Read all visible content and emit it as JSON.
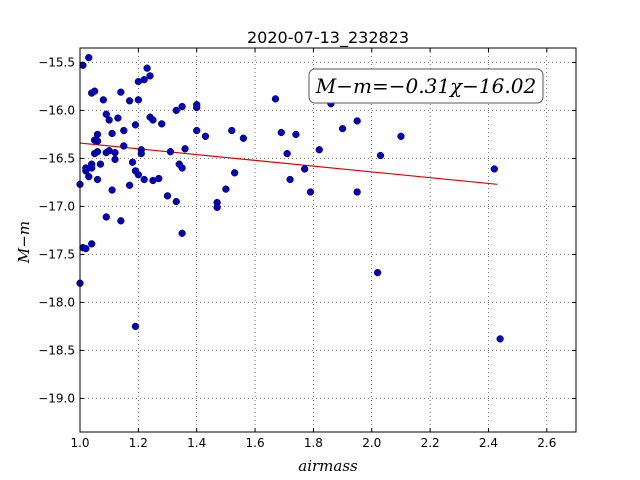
{
  "chart_data": {
    "type": "scatter",
    "title": "2020-07-13_232823",
    "xlabel": "airmass",
    "ylabel": "M−m",
    "xlim": [
      1.0,
      2.7
    ],
    "ylim": [
      -19.35,
      -15.35
    ],
    "y_inverted": true,
    "grid": true,
    "xticks": [
      1.0,
      1.2,
      1.4,
      1.6,
      1.8,
      2.0,
      2.2,
      2.4,
      2.6
    ],
    "xtick_labels": [
      "1.0",
      "1.2",
      "1.4",
      "1.6",
      "1.8",
      "2.0",
      "2.2",
      "2.4",
      "2.6"
    ],
    "yticks": [
      -15.5,
      -16.0,
      -16.5,
      -17.0,
      -17.5,
      -18.0,
      -18.5,
      -19.0
    ],
    "ytick_labels": [
      "−15.5",
      "−16.0",
      "−16.5",
      "−17.0",
      "−17.5",
      "−18.0",
      "−18.5",
      "−19.0"
    ],
    "annotation": "M−m=−0.31χ−16.02",
    "point_color": "#0000c8",
    "fit_color": "#e00000",
    "fit_line": {
      "x": [
        1.0,
        2.43
      ],
      "y": [
        -16.34,
        -16.77
      ]
    },
    "series": [
      {
        "points": [
          [
            1.0,
            -16.77
          ],
          [
            1.0,
            -17.8
          ],
          [
            1.01,
            -15.53
          ],
          [
            1.01,
            -17.43
          ],
          [
            1.02,
            -17.44
          ],
          [
            1.02,
            -16.63
          ],
          [
            1.03,
            -15.45
          ],
          [
            1.02,
            -16.6
          ],
          [
            1.03,
            -16.69
          ],
          [
            1.04,
            -16.56
          ],
          [
            1.04,
            -16.6
          ],
          [
            1.04,
            -15.82
          ],
          [
            1.05,
            -15.8
          ],
          [
            1.05,
            -16.31
          ],
          [
            1.04,
            -17.39
          ],
          [
            1.05,
            -16.45
          ],
          [
            1.06,
            -16.43
          ],
          [
            1.06,
            -16.32
          ],
          [
            1.06,
            -16.25
          ],
          [
            1.06,
            -16.72
          ],
          [
            1.07,
            -16.56
          ],
          [
            1.08,
            -15.89
          ],
          [
            1.09,
            -16.04
          ],
          [
            1.09,
            -16.44
          ],
          [
            1.09,
            -17.11
          ],
          [
            1.1,
            -16.1
          ],
          [
            1.1,
            -16.42
          ],
          [
            1.11,
            -16.24
          ],
          [
            1.11,
            -16.83
          ],
          [
            1.12,
            -16.44
          ],
          [
            1.12,
            -16.51
          ],
          [
            1.13,
            -16.08
          ],
          [
            1.14,
            -15.81
          ],
          [
            1.14,
            -17.15
          ],
          [
            1.15,
            -16.37
          ],
          [
            1.15,
            -16.21
          ],
          [
            1.17,
            -15.9
          ],
          [
            1.17,
            -16.78
          ],
          [
            1.18,
            -16.54
          ],
          [
            1.19,
            -16.15
          ],
          [
            1.19,
            -16.63
          ],
          [
            1.19,
            -18.25
          ],
          [
            1.2,
            -16.67
          ],
          [
            1.2,
            -15.89
          ],
          [
            1.2,
            -15.7
          ],
          [
            1.21,
            -16.41
          ],
          [
            1.21,
            -16.45
          ],
          [
            1.22,
            -16.72
          ],
          [
            1.22,
            -15.68
          ],
          [
            1.23,
            -15.56
          ],
          [
            1.24,
            -15.64
          ],
          [
            1.24,
            -16.07
          ],
          [
            1.25,
            -16.1
          ],
          [
            1.25,
            -16.73
          ],
          [
            1.27,
            -16.71
          ],
          [
            1.28,
            -16.14
          ],
          [
            1.3,
            -16.89
          ],
          [
            1.31,
            -16.43
          ],
          [
            1.33,
            -16.95
          ],
          [
            1.33,
            -16.0
          ],
          [
            1.34,
            -16.56
          ],
          [
            1.35,
            -15.96
          ],
          [
            1.35,
            -16.6
          ],
          [
            1.35,
            -17.28
          ],
          [
            1.36,
            -16.4
          ],
          [
            1.4,
            -15.94
          ],
          [
            1.4,
            -15.97
          ],
          [
            1.4,
            -16.21
          ],
          [
            1.43,
            -16.27
          ],
          [
            1.47,
            -16.96
          ],
          [
            1.47,
            -17.01
          ],
          [
            1.5,
            -16.82
          ],
          [
            1.52,
            -16.21
          ],
          [
            1.53,
            -16.65
          ],
          [
            1.56,
            -16.29
          ],
          [
            1.67,
            -15.88
          ],
          [
            1.69,
            -16.23
          ],
          [
            1.71,
            -16.45
          ],
          [
            1.72,
            -16.72
          ],
          [
            1.74,
            -16.25
          ],
          [
            1.77,
            -16.61
          ],
          [
            1.79,
            -16.85
          ],
          [
            1.82,
            -16.41
          ],
          [
            1.86,
            -15.93
          ],
          [
            1.9,
            -16.19
          ],
          [
            1.95,
            -16.11
          ],
          [
            1.95,
            -16.85
          ],
          [
            2.02,
            -17.69
          ],
          [
            2.03,
            -16.47
          ],
          [
            2.1,
            -16.27
          ],
          [
            2.42,
            -16.61
          ],
          [
            2.44,
            -18.38
          ]
        ]
      }
    ]
  }
}
